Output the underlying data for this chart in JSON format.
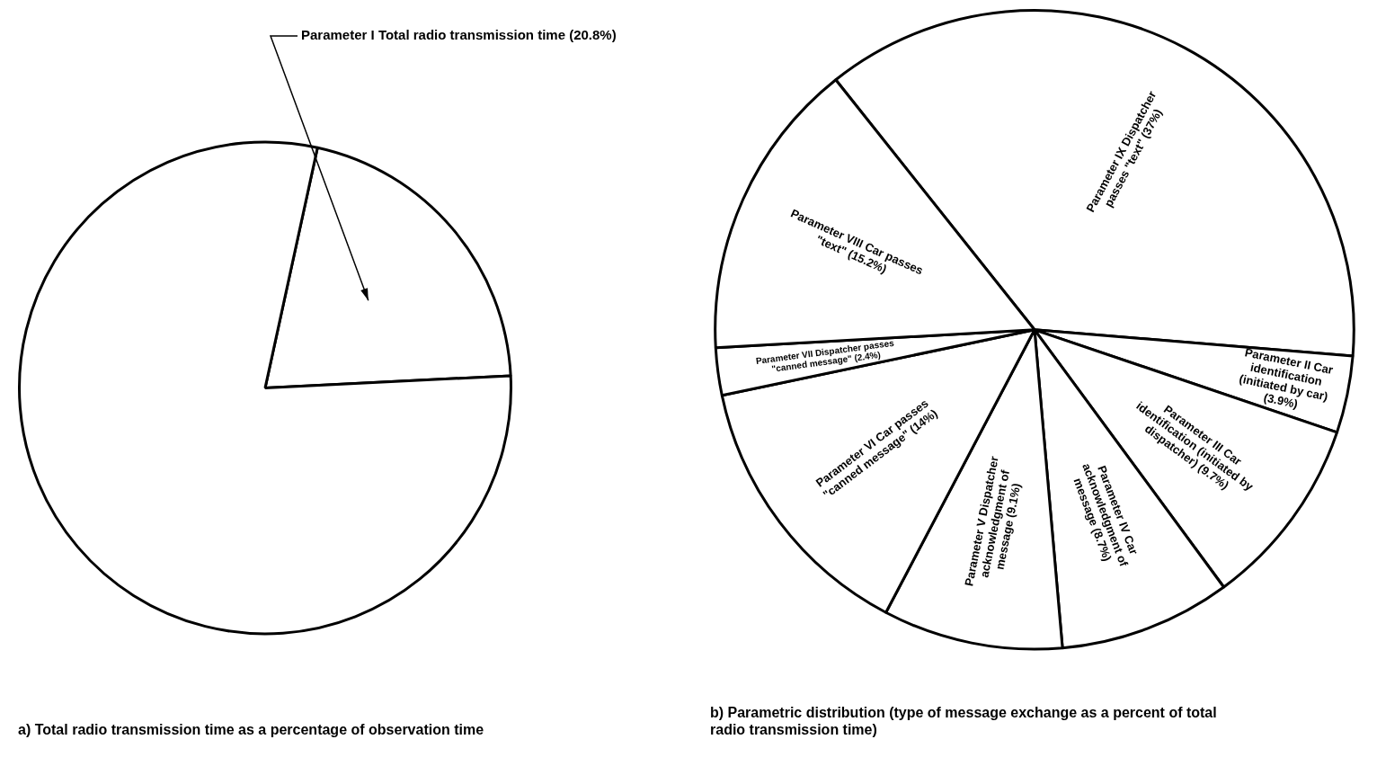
{
  "chart_data": [
    {
      "type": "pie",
      "title": "a) Total radio transmission time as a percentage of observation time",
      "categories": [
        "Parameter I Total radio transmission time (20.8%)",
        null
      ],
      "values": [
        20.8,
        79.2
      ],
      "colors": [
        "#ffffff",
        "#ffffff"
      ],
      "legend": false
    },
    {
      "type": "pie",
      "title": "b) Parametric distribution (type of message exchange as a percent of total radio transmission time)",
      "categories": [
        "Parameter IX Dispatcher passes \"text\" (37%)",
        "Parameter II Car identification (initiated by car) (3.9%)",
        "Parameter III Car identification (initiated by dispatcher) (9.7%)",
        "Parameter IV Car acknowledgment of message (8.7%)",
        "Parameter V Dispatcher acknowledgment of message (9.1%)",
        "Parameter VI Car passes \"canned message\" (14%)",
        "Parameter VII Dispatcher passes \"canned message\" (2.4%)",
        "Parameter VIII Car passes \"text\" (15.2%)"
      ],
      "values": [
        37,
        3.9,
        9.7,
        8.7,
        9.1,
        14,
        2.4,
        15.2
      ],
      "colors": [
        "#ffffff",
        "#ffffff",
        "#ffffff",
        "#ffffff",
        "#ffffff",
        "#ffffff",
        "#ffffff",
        "#ffffff"
      ],
      "legend": false
    }
  ]
}
